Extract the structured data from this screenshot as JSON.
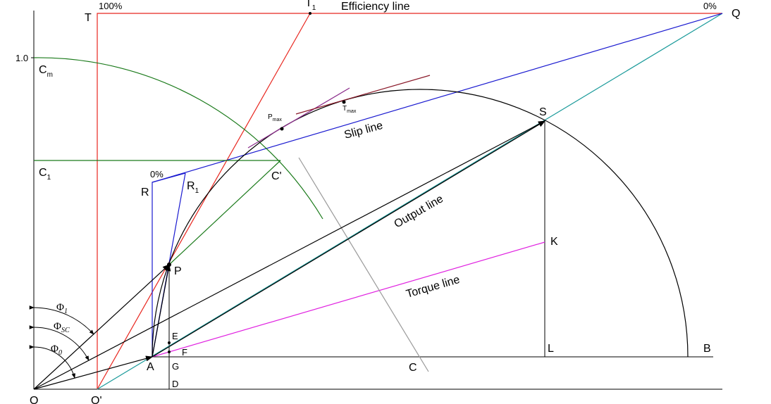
{
  "points": {
    "O": "O",
    "O_prime": "O'",
    "A": "A",
    "G": "G",
    "D": "D",
    "E": "E",
    "F": "F",
    "C": "C",
    "L": "L",
    "B": "B",
    "K": "K",
    "S": "S",
    "P": "P",
    "R": "R",
    "R1_main": "R",
    "R1_sub": "1",
    "C_prime": "C'",
    "T": "T",
    "T1_main": "T",
    "T1_sub": "1",
    "Q": "Q",
    "Cm_main": "C",
    "Cm_sub": "m",
    "C1_main": "C",
    "C1_sub": "1",
    "Pmax_main": "P",
    "Pmax_sub": "max",
    "Tmax_main": "T",
    "Tmax_sub": "max"
  },
  "lines": {
    "efficiency": "Efficiency line",
    "slip": "Slip line",
    "output": "Output line",
    "torque": "Torque line"
  },
  "scale": {
    "efficiency_100": "100%",
    "efficiency_0": "0%",
    "slip_0": "0%",
    "y_one": "1.0"
  },
  "angles": {
    "phi1_main": "Φ",
    "phi1_sub": "1",
    "phisc_main": "Φ",
    "phisc_sub": "SC",
    "phi0_main": "Φ",
    "phi0_sub": "0"
  },
  "colors": {
    "efficiency": "#e8261e",
    "slip": "#1a1ad0",
    "output": "#000000",
    "torque": "#e020e0",
    "circle": "#000000",
    "quarter_circle": "#1a7a1a",
    "diagonal": "#1a9a9a",
    "gray_line": "#9a9a9a",
    "tangent_pmax": "#8a2a8a",
    "tangent_tmax": "#8a1a2a"
  }
}
